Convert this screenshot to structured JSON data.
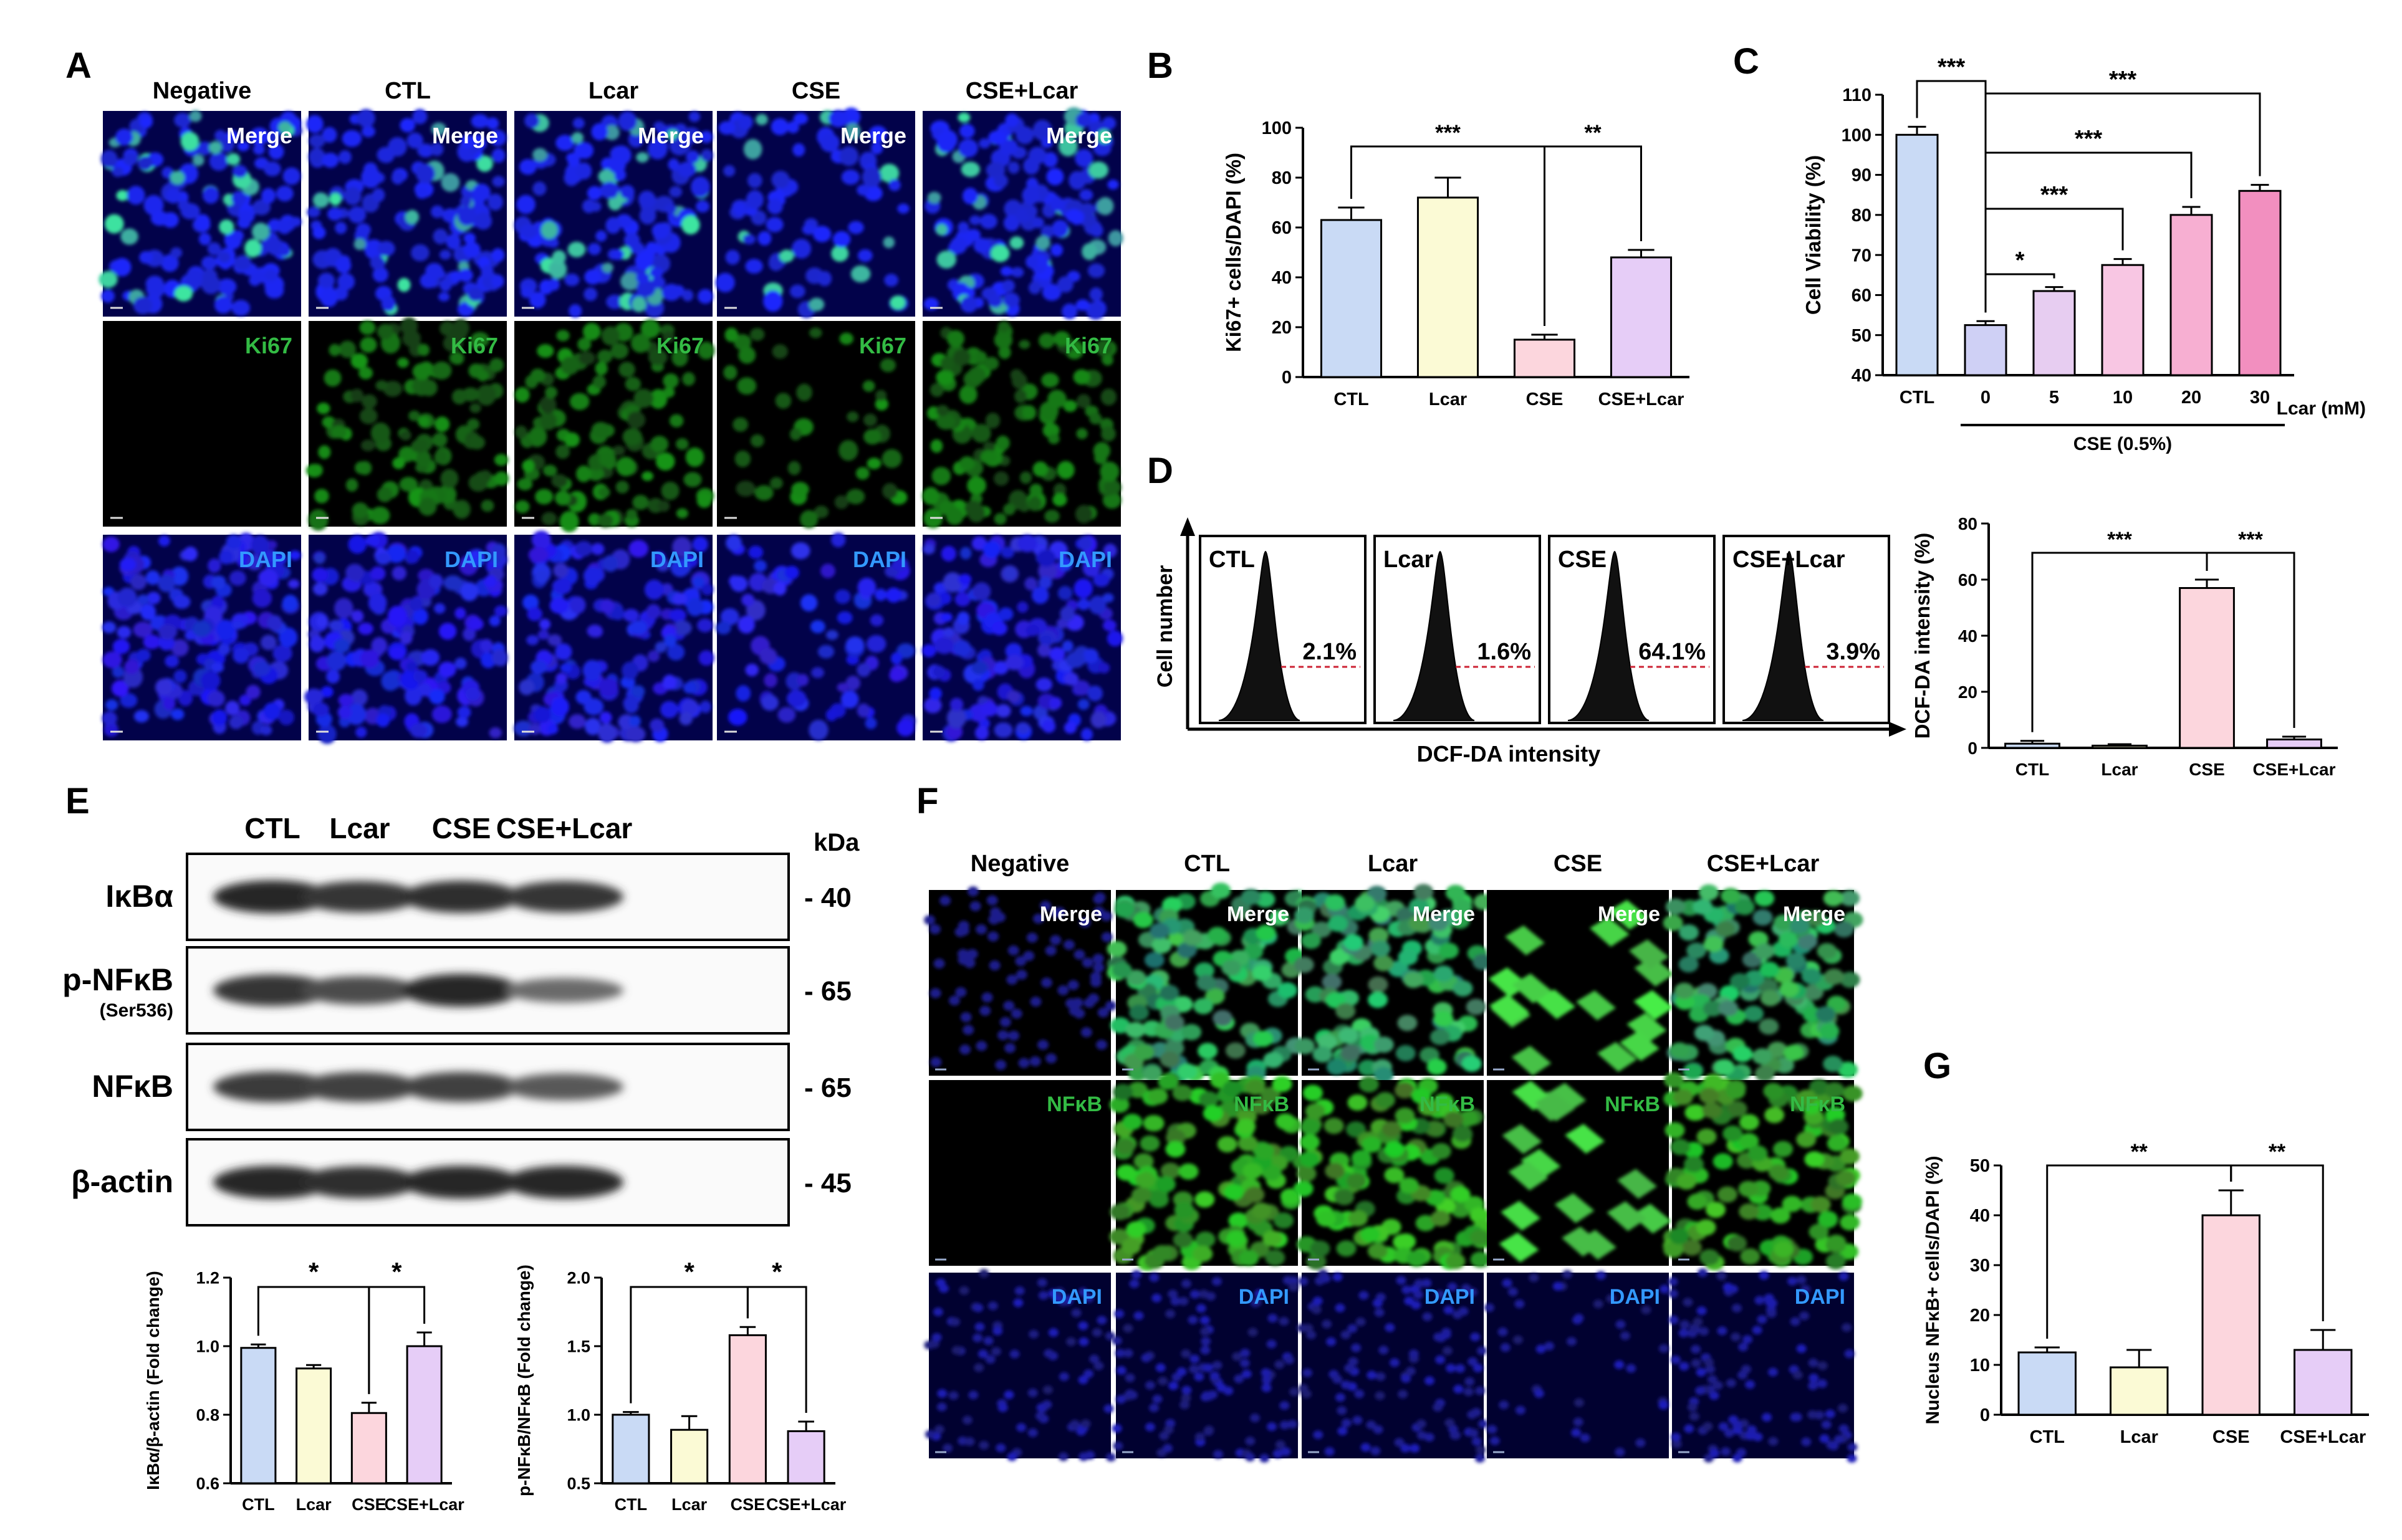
{
  "colors": {
    "CTL": "#c9daf5",
    "Lcar": "#fbfad5",
    "CSE": "#fcd6dd",
    "CSE+Lcar": "#e6cdf7",
    "dapi": "#1414e6",
    "ki67": "#1f7a1f",
    "nfkb": "#2ea82e",
    "viab": [
      "#c9daf5",
      "#cfd0f5",
      "#e7cdf1",
      "#f8c6e3",
      "#f7afd2",
      "#f28fbf"
    ]
  },
  "panels": {
    "A": {
      "letter": "A",
      "columns": [
        "Negative",
        "CTL",
        "Lcar",
        "CSE",
        "CSE+Lcar"
      ],
      "rows": [
        "Merge",
        "Ki67",
        "DAPI"
      ]
    },
    "D": {
      "letter": "D",
      "ylabel": "Cell number",
      "xlabel": "DCF-DA intensity",
      "histograms": [
        {
          "label": "CTL",
          "pct": "2.1%"
        },
        {
          "label": "Lcar",
          "pct": "1.6%"
        },
        {
          "label": "CSE",
          "pct": "64.1%"
        },
        {
          "label": "CSE+Lcar",
          "pct": "3.9%"
        }
      ]
    },
    "E": {
      "letter": "E",
      "lanes": [
        "CTL",
        "Lcar",
        "CSE",
        "CSE+Lcar"
      ],
      "kda_label": "kDa",
      "blots": [
        {
          "name": "IκBα",
          "sub": "",
          "kda": "- 40",
          "intensity": [
            1.0,
            0.9,
            0.95,
            0.9
          ]
        },
        {
          "name": "p-NFκB",
          "sub": "(Ser536)",
          "kda": "- 65",
          "intensity": [
            0.9,
            0.7,
            1.0,
            0.45
          ]
        },
        {
          "name": "NFκB",
          "sub": "",
          "kda": "- 65",
          "intensity": [
            0.85,
            0.8,
            0.8,
            0.6
          ]
        },
        {
          "name": "β-actin",
          "sub": "",
          "kda": "- 45",
          "intensity": [
            1.0,
            0.95,
            1.0,
            1.0
          ]
        }
      ]
    },
    "F": {
      "letter": "F",
      "columns": [
        "Negative",
        "CTL",
        "Lcar",
        "CSE",
        "CSE+Lcar"
      ],
      "rows": [
        "Merge",
        "NFκB",
        "DAPI"
      ]
    }
  },
  "chart_data": [
    {
      "id": "B",
      "type": "bar",
      "categories": [
        "CTL",
        "Lcar",
        "CSE",
        "CSE+Lcar"
      ],
      "values": [
        63,
        72,
        15,
        48
      ],
      "errors": [
        5,
        8,
        2,
        3
      ],
      "ylabel": "Ki67+ cells/DAPI (%)",
      "ylim": [
        0,
        100
      ],
      "yticks": [
        "0",
        "20",
        "40",
        "60",
        "80",
        "100"
      ],
      "significance": [
        {
          "from": 0,
          "to": 2,
          "label": "***"
        },
        {
          "from": 2,
          "to": 3,
          "label": "**"
        }
      ]
    },
    {
      "id": "C",
      "type": "bar",
      "categories": [
        "CTL",
        "0",
        "5",
        "10",
        "20",
        "30"
      ],
      "values": [
        100,
        52.5,
        61,
        67.5,
        80,
        86
      ],
      "errors": [
        2,
        1,
        1,
        1.5,
        2,
        1.5
      ],
      "ylabel": "Cell Viability (%)",
      "ylim": [
        40,
        110
      ],
      "yticks": [
        "40",
        "50",
        "60",
        "70",
        "80",
        "90",
        "100",
        "110"
      ],
      "x_unit_label": "Lcar (mM)",
      "group_label": "CSE (0.5%)",
      "significance": [
        {
          "from": 0,
          "to": 1,
          "label": "***"
        },
        {
          "from": 1,
          "to": 2,
          "label": "*"
        },
        {
          "from": 1,
          "to": 3,
          "label": "***"
        },
        {
          "from": 1,
          "to": 4,
          "label": "***"
        },
        {
          "from": 1,
          "to": 5,
          "label": "***"
        }
      ]
    },
    {
      "id": "D2",
      "type": "bar",
      "categories": [
        "CTL",
        "Lcar",
        "CSE",
        "CSE+Lcar"
      ],
      "values": [
        1.5,
        0.8,
        57,
        3
      ],
      "errors": [
        1,
        0.5,
        3,
        1
      ],
      "ylabel": "DCF-DA intensity (%)",
      "ylim": [
        0,
        80
      ],
      "yticks": [
        "0",
        "20",
        "40",
        "60",
        "80"
      ],
      "significance": [
        {
          "from": 0,
          "to": 2,
          "label": "***"
        },
        {
          "from": 2,
          "to": 3,
          "label": "***"
        }
      ]
    },
    {
      "id": "E1",
      "type": "bar",
      "categories": [
        "CTL",
        "Lcar",
        "CSE",
        "CSE+Lcar"
      ],
      "values": [
        0.995,
        0.935,
        0.805,
        1.0
      ],
      "errors": [
        0.01,
        0.01,
        0.03,
        0.04
      ],
      "ylabel": "IκBα/β-actin (Fold change)",
      "ylim": [
        0.6,
        1.2
      ],
      "yticks": [
        "0.6",
        "0.8",
        "1.0",
        "1.2"
      ],
      "significance": [
        {
          "from": 0,
          "to": 2,
          "label": "*"
        },
        {
          "from": 2,
          "to": 3,
          "label": "*"
        }
      ]
    },
    {
      "id": "E2",
      "type": "bar",
      "categories": [
        "CTL",
        "Lcar",
        "CSE",
        "CSE+Lcar"
      ],
      "values": [
        1.0,
        0.89,
        1.58,
        0.88
      ],
      "errors": [
        0.02,
        0.1,
        0.06,
        0.07
      ],
      "ylabel": "p-NFκB/NFκB (Fold change)",
      "ylim": [
        0.5,
        2.0
      ],
      "yticks": [
        "0.5",
        "1.0",
        "1.5",
        "2.0"
      ],
      "significance": [
        {
          "from": 0,
          "to": 2,
          "label": "*"
        },
        {
          "from": 2,
          "to": 3,
          "label": "*"
        }
      ]
    },
    {
      "id": "G",
      "type": "bar",
      "categories": [
        "CTL",
        "Lcar",
        "CSE",
        "CSE+Lcar"
      ],
      "values": [
        12.5,
        9.5,
        40,
        13
      ],
      "errors": [
        1,
        3.5,
        5,
        4
      ],
      "ylabel": "Nucleus NFκB+ cells/DAPI (%)",
      "ylim": [
        0,
        50
      ],
      "yticks": [
        "0",
        "10",
        "20",
        "30",
        "40",
        "50"
      ],
      "significance": [
        {
          "from": 0,
          "to": 2,
          "label": "**"
        },
        {
          "from": 2,
          "to": 3,
          "label": "**"
        }
      ]
    }
  ],
  "letters": {
    "B": "B",
    "C": "C",
    "G": "G"
  }
}
